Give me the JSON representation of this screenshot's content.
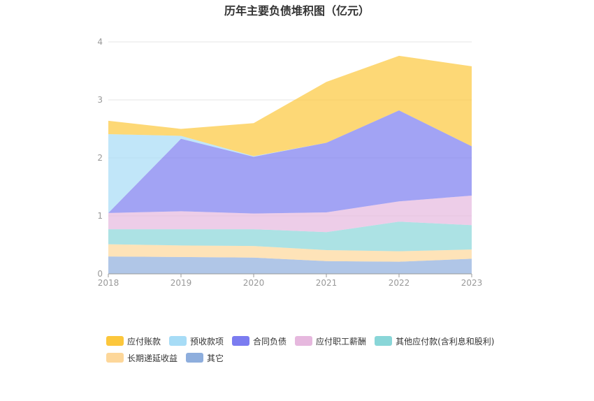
{
  "chart_data": {
    "type": "area",
    "title": "历年主要负债堆积图（亿元）",
    "x": [
      "2018",
      "2019",
      "2020",
      "2021",
      "2022",
      "2023"
    ],
    "ylim": [
      0,
      4
    ],
    "yticks": [
      "0",
      "1",
      "2",
      "3",
      "4"
    ],
    "grid": true,
    "legend_position": "bottom-left",
    "series": [
      {
        "name": "应付账款",
        "color": "#fcc73c",
        "values": [
          0.23,
          0.12,
          0.57,
          1.05,
          0.94,
          1.38
        ]
      },
      {
        "name": "预收款项",
        "color": "#a7dcf6",
        "values": [
          1.36,
          0.05,
          0.01,
          0.0,
          0.0,
          0.0
        ]
      },
      {
        "name": "合同负债",
        "color": "#7b7cf0",
        "values": [
          0.0,
          1.25,
          0.98,
          1.2,
          1.57,
          0.85
        ]
      },
      {
        "name": "应付职工薪酬",
        "color": "#e6b8de",
        "values": [
          0.28,
          0.31,
          0.27,
          0.34,
          0.35,
          0.51
        ]
      },
      {
        "name": "其他应付款(含利息和股利)",
        "color": "#89d6d8",
        "values": [
          0.26,
          0.28,
          0.29,
          0.31,
          0.51,
          0.42
        ]
      },
      {
        "name": "长期递延收益",
        "color": "#fdd79a",
        "values": [
          0.21,
          0.2,
          0.2,
          0.19,
          0.18,
          0.16
        ]
      },
      {
        "name": "其它",
        "color": "#8eaedd",
        "values": [
          0.3,
          0.29,
          0.28,
          0.22,
          0.21,
          0.26
        ]
      }
    ]
  }
}
